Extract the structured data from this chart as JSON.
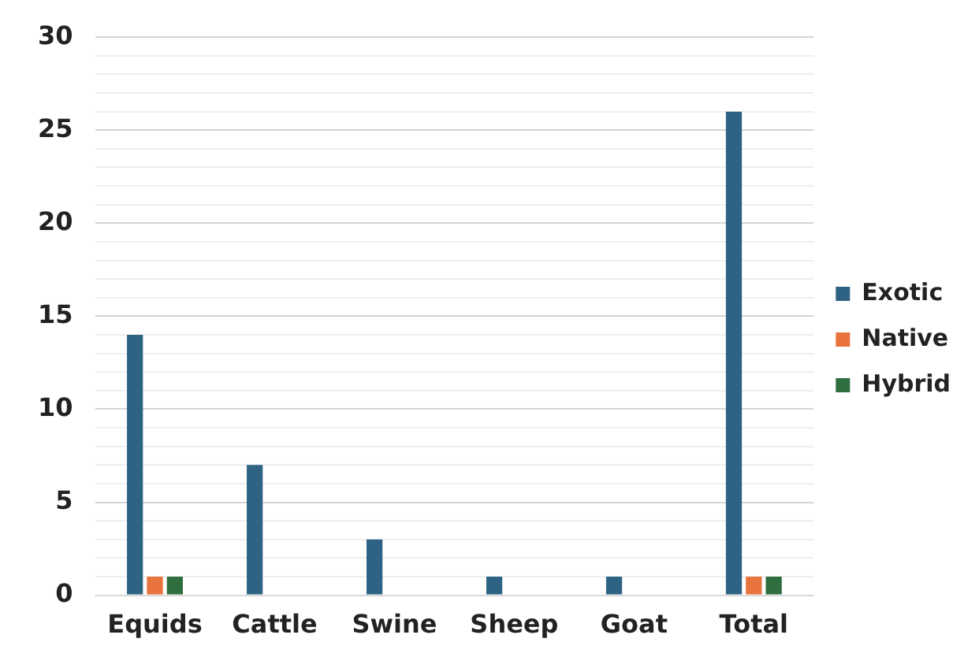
{
  "chart_data": {
    "type": "bar",
    "categories": [
      "Equids",
      "Cattle",
      "Swine",
      "Sheep",
      "Goat",
      "Total"
    ],
    "series": [
      {
        "name": "Exotic",
        "color": "#2e6384",
        "values": [
          14,
          7,
          3,
          1,
          1,
          26
        ]
      },
      {
        "name": "Native",
        "color": "#e8733c",
        "values": [
          1,
          0,
          0,
          0,
          0,
          1
        ]
      },
      {
        "name": "Hybrid",
        "color": "#2f6e3f",
        "values": [
          1,
          0,
          0,
          0,
          0,
          1
        ]
      }
    ],
    "ylim": [
      0,
      30
    ],
    "yticks": [
      0,
      {
        "value": 1,
        "label": null
      },
      {
        "value": 2,
        "label": null
      },
      {
        "value": 3,
        "label": null
      },
      {
        "value": 4,
        "label": null
      },
      5,
      {
        "value": 6,
        "label": null
      },
      {
        "value": 7,
        "label": null
      },
      {
        "value": 8,
        "label": null
      },
      {
        "value": 9,
        "label": null
      },
      10,
      {
        "value": 11,
        "label": null
      },
      {
        "value": 12,
        "label": null
      },
      {
        "value": 13,
        "label": null
      },
      {
        "value": 14,
        "label": null
      },
      15,
      {
        "value": 16,
        "label": null
      },
      {
        "value": 17,
        "label": null
      },
      {
        "value": 18,
        "label": null
      },
      {
        "value": 19,
        "label": null
      },
      20,
      {
        "value": 21,
        "label": null
      },
      {
        "value": 22,
        "label": null
      },
      {
        "value": 23,
        "label": null
      },
      {
        "value": 24,
        "label": null
      },
      25,
      {
        "value": 26,
        "label": null
      },
      {
        "value": 27,
        "label": null
      },
      {
        "value": 28,
        "label": null
      },
      {
        "value": 29,
        "label": null
      },
      30
    ],
    "grid": "y",
    "legend": "right"
  }
}
